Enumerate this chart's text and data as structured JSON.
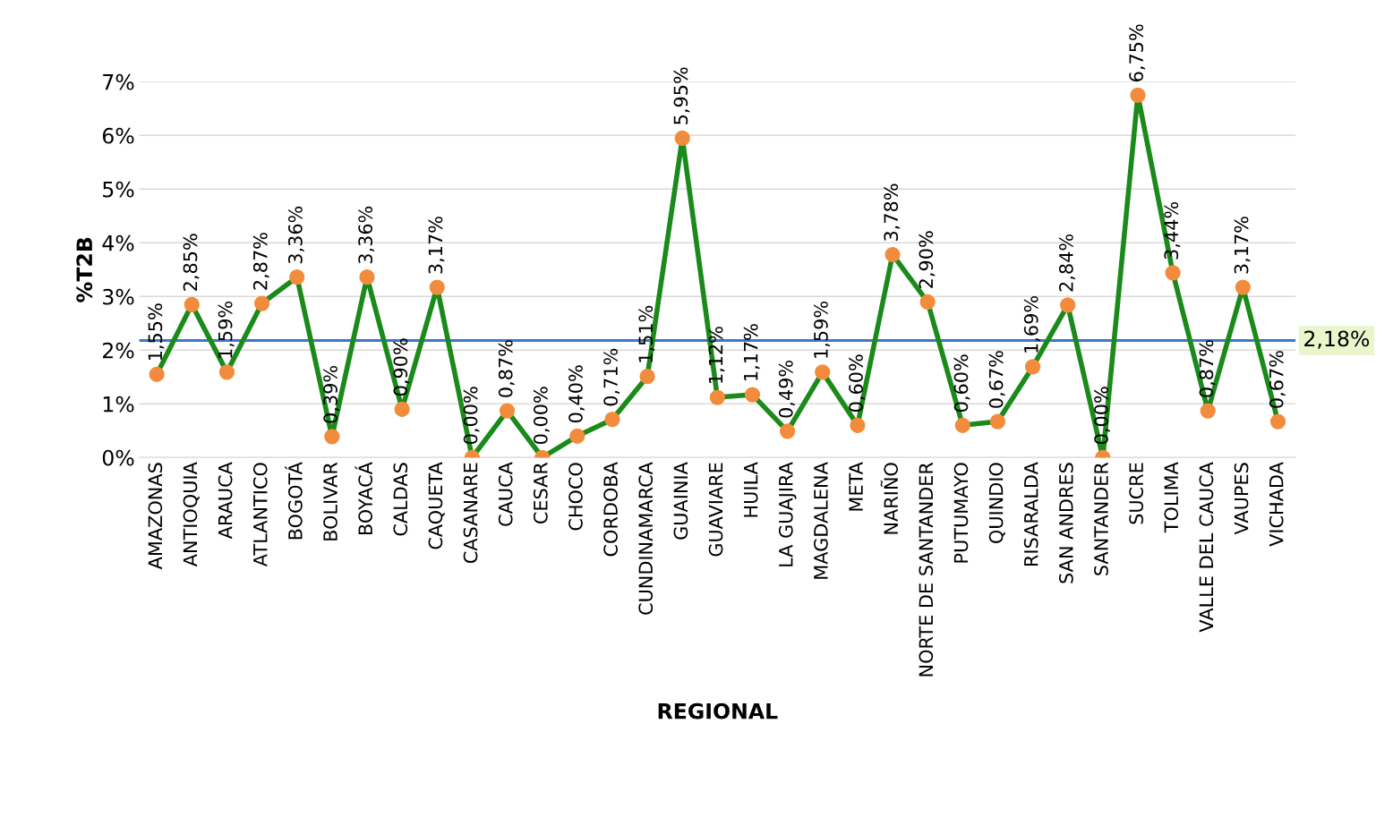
{
  "chart_data": {
    "type": "line",
    "xlabel": "REGIONAL",
    "ylabel": "%T2B",
    "categories": [
      "AMAZONAS",
      "ANTIOQUIA",
      "ARAUCA",
      "ATLANTICO",
      "BOGOTÁ",
      "BOLIVAR",
      "BOYACÁ",
      "CALDAS",
      "CAQUETA",
      "CASANARE",
      "CAUCA",
      "CESAR",
      "CHOCO",
      "CORDOBA",
      "CUNDINAMARCA",
      "GUAINIA",
      "GUAVIARE",
      "HUILA",
      "LA GUAJIRA",
      "MAGDALENA",
      "META",
      "NARIÑO",
      "NORTE DE SANTANDER",
      "PUTUMAYO",
      "QUINDIO",
      "RISARALDA",
      "SAN ANDRES",
      "SANTANDER",
      "SUCRE",
      "TOLIMA",
      "VALLE DEL CAUCA",
      "VAUPES",
      "VICHADA"
    ],
    "series": [
      {
        "color": "#1a8a1a",
        "colors": [
          "#f28c3c",
          "#f28c3c",
          "#f28c3c",
          "#f28c3c",
          "#f28c3c",
          "#f28c3c",
          "#f28c3c",
          "#f28c3c",
          "#f28c3c",
          "#f28c3c",
          "#f28c3c",
          "#f28c3c",
          "#f28c3c",
          "#f28c3c",
          "#f28c3c",
          "#f28c3c",
          "#f28c3c",
          "#f28c3c",
          "#f28c3c",
          "#f28c3c",
          "#f28c3c",
          "#f28c3c",
          "#f28c3c",
          "#f28c3c",
          "#f28c3c",
          "#f28c3c",
          "#f28c3c",
          "#f28c3c",
          "#f28c3c",
          "#f28c3c",
          "#f28c3c",
          "#f28c3c",
          "#f28c3c"
        ],
        "values": [
          1.55,
          2.85,
          1.59,
          2.87,
          3.36,
          0.39,
          3.36,
          0.9,
          3.17,
          0.0,
          0.87,
          0.0,
          0.4,
          0.71,
          1.51,
          5.95,
          1.12,
          1.17,
          0.49,
          1.59,
          0.6,
          3.78,
          2.9,
          0.6,
          0.67,
          1.69,
          2.84,
          0.0,
          6.75,
          3.44,
          0.87,
          3.17,
          0.67
        ],
        "value_labels": [
          "1,55%",
          "2,85%",
          "1,59%",
          "2,87%",
          "3,36%",
          "0,39%",
          "3,36%",
          "0,90%",
          "3,17%",
          "0,00%",
          "0,87%",
          "0,00%",
          "0,40%",
          "0,71%",
          "1,51%",
          "5,95%",
          "1,12%",
          "1,17%",
          "0,49%",
          "1,59%",
          "0,60%",
          "3,78%",
          "2,90%",
          "0,60%",
          "0,67%",
          "1,69%",
          "2,84%",
          "0,00%",
          "6,75%",
          "3,44%",
          "0,87%",
          "3,17%",
          "0,67%"
        ]
      }
    ],
    "ylim": [
      0,
      7
    ],
    "yticks": [
      {
        "value": 0,
        "label": "0%"
      },
      {
        "value": 1,
        "label": "1%"
      },
      {
        "value": 2,
        "label": "2%"
      },
      {
        "value": 3,
        "label": "3%"
      },
      {
        "value": 4,
        "label": "4%"
      },
      {
        "value": 5,
        "label": "5%"
      },
      {
        "value": 6,
        "label": "6%"
      },
      {
        "value": 7,
        "label": "7%"
      }
    ],
    "grid": "y",
    "marker": "circle",
    "line_style": "solid",
    "ref_lines": [
      {
        "axis": "y",
        "value": 2.18,
        "label": "2,18%",
        "color": "#3a78c8"
      }
    ]
  }
}
